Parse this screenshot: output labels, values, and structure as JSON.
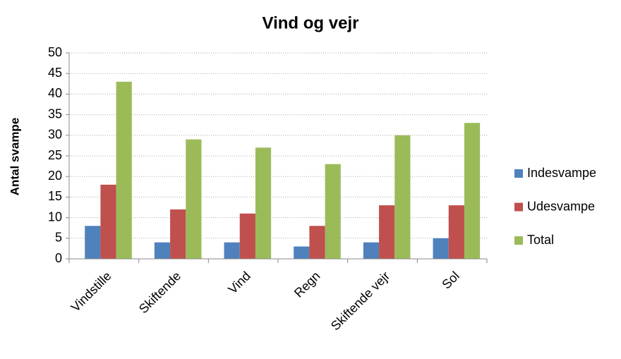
{
  "chart_data": {
    "type": "bar",
    "title": "Vind og vejr",
    "y_label": "Antal svampe",
    "categories": [
      "Vindstille",
      "Skiftende",
      "Vind",
      "Regn",
      "Skiftende vejr",
      "Sol"
    ],
    "series": [
      {
        "name": "Indesvampe",
        "color": "#4f81bd",
        "values": [
          8,
          4,
          4,
          3,
          4,
          5
        ]
      },
      {
        "name": "Udesvampe",
        "color": "#c0504d",
        "values": [
          18,
          12,
          11,
          8,
          13,
          13
        ]
      },
      {
        "name": "Total",
        "color": "#9bbb59",
        "values": [
          43,
          29,
          27,
          23,
          30,
          33
        ]
      }
    ],
    "ylim": [
      0,
      50
    ],
    "yticks": [
      0,
      5,
      10,
      15,
      20,
      25,
      30,
      35,
      40,
      45,
      50
    ],
    "grid": true,
    "legend": "right"
  }
}
